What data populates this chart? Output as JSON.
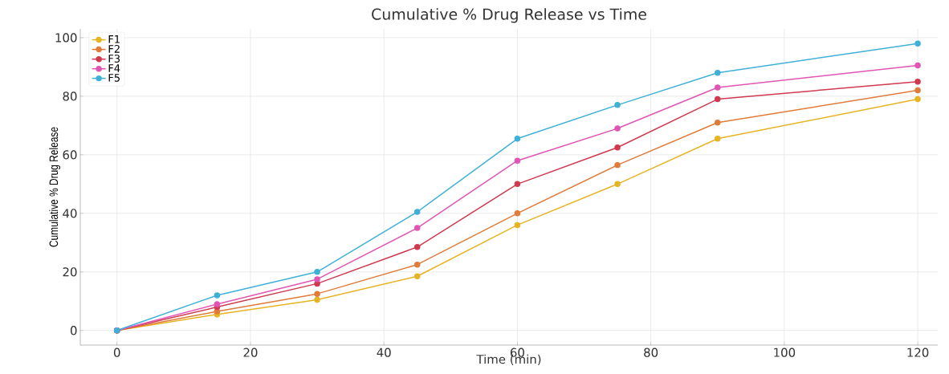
{
  "chart_data": {
    "type": "line",
    "title": "Cumulative % Drug Release vs Time",
    "xlabel": "Time (min)",
    "ylabel": "Cumulative % Drug Release",
    "x": [
      0,
      15,
      30,
      45,
      60,
      75,
      90,
      120
    ],
    "series": [
      {
        "name": "F1",
        "color": "#e6b422",
        "values": [
          0,
          5.5,
          10.5,
          18.5,
          36,
          50,
          65.5,
          79
        ]
      },
      {
        "name": "F2",
        "color": "#e07b39",
        "values": [
          0,
          6.5,
          12.5,
          22.5,
          40,
          56.5,
          71,
          82
        ]
      },
      {
        "name": "F3",
        "color": "#d0394f",
        "values": [
          0,
          8,
          16,
          28.5,
          50,
          62.5,
          79,
          85
        ]
      },
      {
        "name": "F4",
        "color": "#e055b4",
        "values": [
          0,
          9,
          17.5,
          35,
          58,
          69,
          83,
          90.5
        ]
      },
      {
        "name": "F5",
        "color": "#3fb0d8",
        "values": [
          0,
          12,
          20,
          40.5,
          65.5,
          77,
          88,
          98
        ]
      }
    ],
    "xlim": [
      -5.5,
      123
    ],
    "ylim": [
      -5,
      103
    ],
    "xticks": [
      0,
      20,
      40,
      60,
      80,
      100,
      120
    ],
    "yticks": [
      0,
      20,
      40,
      60,
      80,
      100
    ],
    "grid": true,
    "legend": "top left",
    "marker": "circle",
    "line_style": "solid"
  }
}
